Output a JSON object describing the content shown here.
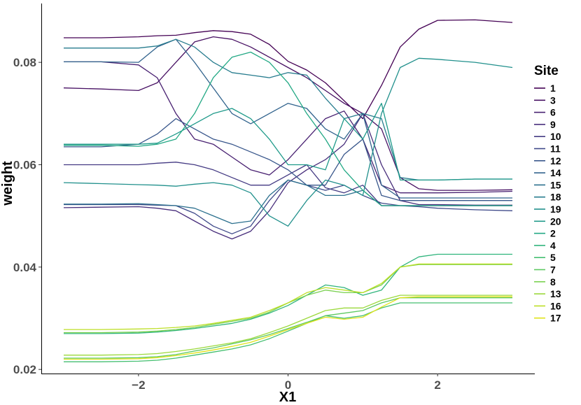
{
  "chart_data": {
    "type": "line",
    "title": "",
    "xlabel": "X1",
    "ylabel": "weight",
    "xlim": [
      -3.3,
      3.3
    ],
    "ylim": [
      0.0192,
      0.0915
    ],
    "xticks": [
      -2,
      0,
      2
    ],
    "xtick_labels": [
      "−2",
      "0",
      "2"
    ],
    "yticks": [
      0.02,
      0.04,
      0.06,
      0.08
    ],
    "ytick_labels": [
      "0.02",
      "0.04",
      "0.06",
      "0.08"
    ],
    "grid": false,
    "legend": {
      "title": "Site",
      "position": "right"
    },
    "x": [
      -3,
      -2.5,
      -2,
      -1.75,
      -1.5,
      -1.25,
      -1,
      -0.75,
      -0.5,
      -0.25,
      0,
      0.25,
      0.5,
      0.75,
      1,
      1.25,
      1.5,
      1.75,
      2,
      2.5,
      3
    ],
    "series": [
      {
        "name": "1",
        "color": "#440154",
        "values": [
          0.0848,
          0.0848,
          0.085,
          0.0852,
          0.0853,
          0.0858,
          0.0862,
          0.086,
          0.0855,
          0.0835,
          0.0802,
          0.0785,
          0.076,
          0.0725,
          0.069,
          0.0755,
          0.083,
          0.0865,
          0.0882,
          0.0883,
          0.0878
        ]
      },
      {
        "name": "3",
        "color": "#471063",
        "values": [
          0.075,
          0.0748,
          0.0745,
          0.076,
          0.08,
          0.084,
          0.085,
          0.0845,
          0.083,
          0.081,
          0.079,
          0.077,
          0.0745,
          0.072,
          0.07,
          0.067,
          0.0575,
          0.0553,
          0.055,
          0.055,
          0.0551
        ]
      },
      {
        "name": "6",
        "color": "#482071",
        "values": [
          0.0801,
          0.0801,
          0.0795,
          0.077,
          0.07,
          0.065,
          0.064,
          0.0615,
          0.059,
          0.058,
          0.061,
          0.065,
          0.069,
          0.0705,
          0.065,
          0.056,
          0.0545,
          0.0545,
          0.0545,
          0.0546,
          0.0548
        ]
      },
      {
        "name": "9",
        "color": "#472D7B",
        "values": [
          0.0516,
          0.0517,
          0.0518,
          0.0515,
          0.051,
          0.049,
          0.047,
          0.0455,
          0.047,
          0.051,
          0.0565,
          0.059,
          0.061,
          0.064,
          0.07,
          0.06,
          0.053,
          0.0522,
          0.0522,
          0.0521,
          0.0521
        ]
      },
      {
        "name": "10",
        "color": "#443A83",
        "values": [
          0.06,
          0.06,
          0.06,
          0.0603,
          0.0605,
          0.06,
          0.059,
          0.0575,
          0.056,
          0.056,
          0.058,
          0.06,
          0.0555,
          0.0545,
          0.056,
          0.052,
          0.052,
          0.052,
          0.052,
          0.052,
          0.052
        ]
      },
      {
        "name": "11",
        "color": "#3E4989",
        "values": [
          0.0522,
          0.0522,
          0.0522,
          0.0521,
          0.052,
          0.0505,
          0.048,
          0.0465,
          0.048,
          0.053,
          0.057,
          0.056,
          0.055,
          0.056,
          0.054,
          0.0525,
          0.052,
          0.0518,
          0.0515,
          0.0512,
          0.051
        ]
      },
      {
        "name": "12",
        "color": "#38568B",
        "values": [
          0.0635,
          0.0635,
          0.064,
          0.066,
          0.069,
          0.067,
          0.065,
          0.064,
          0.0625,
          0.061,
          0.059,
          0.056,
          0.056,
          0.062,
          0.065,
          0.054,
          0.053,
          0.053,
          0.053,
          0.053,
          0.053
        ]
      },
      {
        "name": "14",
        "color": "#31638D",
        "values": [
          0.0801,
          0.0801,
          0.08,
          0.083,
          0.0845,
          0.08,
          0.075,
          0.07,
          0.068,
          0.07,
          0.072,
          0.071,
          0.067,
          0.065,
          0.07,
          0.056,
          0.0535,
          0.0535,
          0.0535,
          0.0535,
          0.0535
        ]
      },
      {
        "name": "15",
        "color": "#2C708E",
        "values": [
          0.0523,
          0.0523,
          0.0524,
          0.0522,
          0.052,
          0.0515,
          0.05,
          0.0485,
          0.049,
          0.054,
          0.057,
          0.056,
          0.054,
          0.054,
          0.055,
          0.052,
          0.052,
          0.052,
          0.052,
          0.052,
          0.052
        ]
      },
      {
        "name": "18",
        "color": "#277C8E",
        "values": [
          0.0828,
          0.0828,
          0.0828,
          0.0832,
          0.0845,
          0.083,
          0.08,
          0.078,
          0.0775,
          0.077,
          0.078,
          0.0775,
          0.073,
          0.069,
          0.07,
          0.069,
          0.0575,
          0.057,
          0.057,
          0.0572,
          0.0572
        ]
      },
      {
        "name": "19",
        "color": "#21908C",
        "values": [
          0.0565,
          0.0563,
          0.0561,
          0.056,
          0.0558,
          0.0562,
          0.0565,
          0.056,
          0.0545,
          0.05,
          0.048,
          0.053,
          0.057,
          0.056,
          0.054,
          0.07,
          0.079,
          0.0808,
          0.0806,
          0.08,
          0.079
        ]
      },
      {
        "name": "20",
        "color": "#1F9A8A",
        "values": [
          0.064,
          0.064,
          0.064,
          0.0642,
          0.066,
          0.068,
          0.07,
          0.071,
          0.069,
          0.065,
          0.06,
          0.06,
          0.059,
          0.069,
          0.065,
          0.072,
          0.057,
          0.057,
          0.057,
          0.0572,
          0.0572
        ]
      },
      {
        "name": "2",
        "color": "#22A884",
        "values": [
          0.0638,
          0.0638,
          0.0636,
          0.064,
          0.065,
          0.07,
          0.077,
          0.081,
          0.082,
          0.08,
          0.076,
          0.07,
          0.065,
          0.059,
          0.055,
          0.052,
          0.052,
          0.052,
          0.052,
          0.052,
          0.052
        ]
      },
      {
        "name": "4",
        "color": "#2FB47C",
        "values": [
          0.027,
          0.027,
          0.0271,
          0.0273,
          0.0276,
          0.028,
          0.0285,
          0.029,
          0.0298,
          0.031,
          0.0325,
          0.0345,
          0.0365,
          0.036,
          0.0345,
          0.0355,
          0.04,
          0.042,
          0.0425,
          0.0425,
          0.0425
        ]
      },
      {
        "name": "5",
        "color": "#44BF70",
        "values": [
          0.0215,
          0.0215,
          0.0216,
          0.0218,
          0.0222,
          0.0228,
          0.0234,
          0.024,
          0.0248,
          0.026,
          0.0275,
          0.029,
          0.0305,
          0.03,
          0.0305,
          0.032,
          0.033,
          0.033,
          0.033,
          0.033,
          0.033
        ]
      },
      {
        "name": "7",
        "color": "#5EC962",
        "values": [
          0.0222,
          0.0222,
          0.0223,
          0.0225,
          0.0229,
          0.0236,
          0.0242,
          0.025,
          0.0258,
          0.0268,
          0.028,
          0.0292,
          0.0305,
          0.031,
          0.0315,
          0.033,
          0.034,
          0.034,
          0.034,
          0.034,
          0.034
        ]
      },
      {
        "name": "8",
        "color": "#7AD151",
        "values": [
          0.0272,
          0.0272,
          0.0273,
          0.0275,
          0.0278,
          0.0282,
          0.0288,
          0.0294,
          0.03,
          0.0312,
          0.033,
          0.0345,
          0.0355,
          0.035,
          0.035,
          0.0365,
          0.04,
          0.0405,
          0.0405,
          0.0405,
          0.0405
        ]
      },
      {
        "name": "13",
        "color": "#9BD93C",
        "values": [
          0.0228,
          0.0228,
          0.0229,
          0.0231,
          0.0235,
          0.024,
          0.0246,
          0.0252,
          0.026,
          0.0272,
          0.0285,
          0.03,
          0.0315,
          0.032,
          0.032,
          0.0335,
          0.0345,
          0.0345,
          0.0345,
          0.0345,
          0.0345
        ]
      },
      {
        "name": "16",
        "color": "#BDDF26",
        "values": [
          0.0278,
          0.0278,
          0.0279,
          0.028,
          0.0282,
          0.0285,
          0.029,
          0.0296,
          0.0302,
          0.0315,
          0.033,
          0.035,
          0.036,
          0.0355,
          0.035,
          0.0368,
          0.04,
          0.0406,
          0.0406,
          0.0406,
          0.0406
        ]
      },
      {
        "name": "17",
        "color": "#DFE318",
        "values": [
          0.022,
          0.022,
          0.0221,
          0.0223,
          0.0227,
          0.0232,
          0.0238,
          0.0245,
          0.0253,
          0.0265,
          0.0278,
          0.029,
          0.0302,
          0.0298,
          0.0302,
          0.0322,
          0.034,
          0.0342,
          0.0342,
          0.0342,
          0.0342
        ]
      }
    ]
  }
}
